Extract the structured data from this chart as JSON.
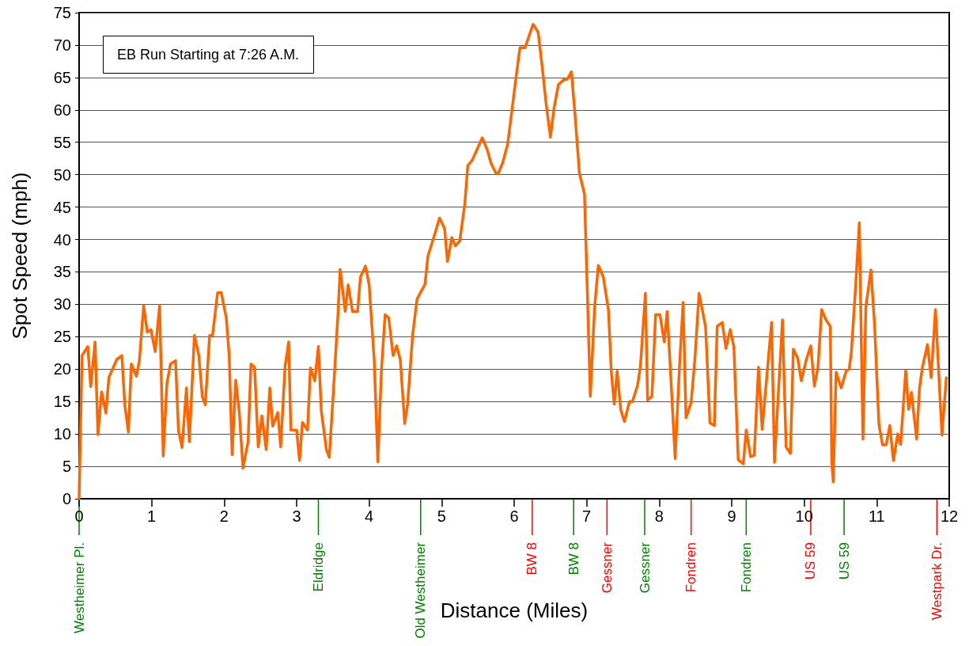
{
  "chart_data": {
    "type": "line",
    "xlabel": "Distance (Miles)",
    "ylabel": "Spot Speed (mph)",
    "annotations": [
      "EB Run Starting at 7:26 A.M."
    ],
    "xlim": [
      0,
      12
    ],
    "xticks": [
      0,
      1,
      2,
      3,
      4,
      5,
      6,
      7,
      8,
      9,
      10,
      11,
      12
    ],
    "ylim": [
      0,
      75
    ],
    "yticks": [
      0,
      5,
      10,
      15,
      20,
      25,
      30,
      35,
      40,
      45,
      50,
      55,
      60,
      65,
      70,
      75
    ],
    "grid": "y",
    "marker": "none",
    "line_style": "solid",
    "ref_lines": [
      {
        "axis": "x",
        "value": 0,
        "label": "Westheimer Pl.",
        "color": "#008000"
      },
      {
        "axis": "x",
        "value": 3.3,
        "label": "Eldridge",
        "color": "#008000"
      },
      {
        "axis": "x",
        "value": 4.71,
        "label": "Old Westheimer",
        "color": "#008000"
      },
      {
        "axis": "x",
        "value": 6.25,
        "label": "BW 8",
        "color": "#ff0000"
      },
      {
        "axis": "x",
        "value": 6.82,
        "label": "BW 8",
        "color": "#008000"
      },
      {
        "axis": "x",
        "value": 7.28,
        "label": "Gessner",
        "color": "#ff0000"
      },
      {
        "axis": "x",
        "value": 7.8,
        "label": "Gessner",
        "color": "#008000"
      },
      {
        "axis": "x",
        "value": 8.44,
        "label": "Fondren",
        "color": "#ff0000"
      },
      {
        "axis": "x",
        "value": 9.2,
        "label": "Fondren",
        "color": "#008000"
      },
      {
        "axis": "x",
        "value": 10.09,
        "label": "US 59",
        "color": "#ff0000"
      },
      {
        "axis": "x",
        "value": 10.55,
        "label": "US 59",
        "color": "#008000"
      },
      {
        "axis": "x",
        "value": 11.83,
        "label": "Westpark Dr.",
        "color": "#ff0000"
      }
    ],
    "series": [
      {
        "color": "#ff6600",
        "x": [
          0,
          0.04,
          0.12,
          0.16,
          0.22,
          0.26,
          0.31,
          0.37,
          0.41,
          0.52,
          0.59,
          0.63,
          0.68,
          0.72,
          0.79,
          0.83,
          0.89,
          0.94,
          0.99,
          1.05,
          1.11,
          1.16,
          1.21,
          1.26,
          1.33,
          1.37,
          1.42,
          1.48,
          1.52,
          1.59,
          1.65,
          1.7,
          1.74,
          1.8,
          1.84,
          1.91,
          1.96,
          2.03,
          2.07,
          2.11,
          2.16,
          2.21,
          2.26,
          2.33,
          2.37,
          2.42,
          2.47,
          2.52,
          2.58,
          2.63,
          2.67,
          2.74,
          2.78,
          2.84,
          2.89,
          2.92,
          3.0,
          3.04,
          3.08,
          3.15,
          3.19,
          3.25,
          3.3,
          3.34,
          3.41,
          3.45,
          3.51,
          3.57,
          3.6,
          3.67,
          3.71,
          3.77,
          3.84,
          3.88,
          3.95,
          4.0,
          4.07,
          4.12,
          4.17,
          4.22,
          4.27,
          4.33,
          4.38,
          4.43,
          4.49,
          4.53,
          4.6,
          4.66,
          4.77,
          4.81,
          4.91,
          4.97,
          5.04,
          5.08,
          5.14,
          5.19,
          5.25,
          5.32,
          5.36,
          5.42,
          5.56,
          5.63,
          5.68,
          5.75,
          5.78,
          5.84,
          5.91,
          5.97,
          6.03,
          6.08,
          6.15,
          6.26,
          6.33,
          6.39,
          6.44,
          6.5,
          6.55,
          6.61,
          6.69,
          6.73,
          6.79,
          6.84,
          6.9,
          6.97,
          7.0,
          7.05,
          7.11,
          7.16,
          7.23,
          7.3,
          7.34,
          7.38,
          7.42,
          7.47,
          7.52,
          7.59,
          7.63,
          7.7,
          7.74,
          7.81,
          7.84,
          7.9,
          7.95,
          8.01,
          8.07,
          8.11,
          8.16,
          8.22,
          8.28,
          8.33,
          8.37,
          8.44,
          8.49,
          8.55,
          8.64,
          8.7,
          8.76,
          8.8,
          8.87,
          8.92,
          8.98,
          9.03,
          9.09,
          9.16,
          9.2,
          9.26,
          9.31,
          9.37,
          9.42,
          9.55,
          9.59,
          9.7,
          9.75,
          9.81,
          9.85,
          9.91,
          9.96,
          10.03,
          10.09,
          10.14,
          10.19,
          10.24,
          10.3,
          10.36,
          10.38,
          10.4,
          10.44,
          10.51,
          10.58,
          10.62,
          10.65,
          10.71,
          10.76,
          10.81,
          10.85,
          10.92,
          10.97,
          11.03,
          11.08,
          11.13,
          11.18,
          11.23,
          11.29,
          11.33,
          11.4,
          11.44,
          11.48,
          11.55,
          11.59,
          11.63,
          11.7,
          11.75,
          11.81,
          11.9,
          11.96
        ],
        "values": [
          0,
          22.1,
          23.5,
          17.3,
          24.2,
          9.9,
          16.5,
          13.2,
          18.7,
          21.5,
          22.1,
          14.5,
          10.3,
          20.8,
          18.9,
          21.2,
          29.8,
          25.7,
          26.1,
          22.7,
          29.8,
          6.6,
          17.7,
          20.8,
          21.3,
          10.6,
          7.9,
          17.1,
          8.8,
          25.2,
          22.2,
          15.7,
          14.5,
          25.2,
          25.2,
          31.8,
          31.8,
          27.9,
          22,
          6.8,
          18.3,
          13.2,
          4.7,
          8.8,
          20.8,
          20.3,
          8,
          12.8,
          7.6,
          17.1,
          11.2,
          13.3,
          8,
          20.4,
          24.2,
          10.6,
          10.6,
          5.9,
          11.8,
          10.6,
          20.2,
          18.2,
          23.5,
          13.6,
          7.6,
          6.4,
          17.1,
          28.5,
          35.4,
          28.9,
          33,
          28.9,
          28.9,
          34.2,
          35.9,
          33,
          21.4,
          5.7,
          20,
          28.4,
          27.9,
          22.1,
          23.6,
          21.4,
          11.6,
          14.6,
          25.3,
          30.8,
          33.1,
          37.4,
          41,
          43.3,
          41.7,
          36.6,
          40.3,
          39,
          39.8,
          45.6,
          51.4,
          52.2,
          55.7,
          53.8,
          51.8,
          50.2,
          50.2,
          51.8,
          54.7,
          60,
          65.4,
          69.6,
          69.6,
          73.2,
          72,
          66.3,
          61,
          55.8,
          60.3,
          63.9,
          64.7,
          64.7,
          65.9,
          59.1,
          50.2,
          47,
          35.4,
          15.8,
          29.6,
          36,
          34.2,
          29.1,
          19.5,
          14.6,
          19.7,
          13.7,
          11.9,
          15,
          15,
          17.4,
          20.3,
          31.7,
          15.2,
          15.8,
          28.4,
          28.4,
          24.2,
          28.9,
          18.8,
          6.2,
          20.4,
          30.3,
          12.5,
          14.8,
          21.2,
          31.7,
          26.5,
          11.7,
          11.3,
          26.6,
          27.2,
          23.2,
          26.1,
          23.4,
          6,
          5.4,
          10.6,
          6.5,
          6.7,
          20.3,
          10.7,
          27.2,
          5.6,
          27.6,
          8,
          7,
          23.1,
          21.7,
          18.2,
          21.5,
          23.6,
          17.4,
          20.3,
          29.2,
          27.6,
          26.6,
          5.7,
          2.6,
          19.5,
          17.1,
          19.8,
          20,
          22.6,
          33,
          42.6,
          9.2,
          29.6,
          35.3,
          26.9,
          11.5,
          8.3,
          8.3,
          11.3,
          5.9,
          10,
          8.4,
          19.8,
          13.8,
          16.4,
          9.2,
          17.1,
          20.3,
          23.8,
          18.7,
          29.2,
          9.8,
          18.7
        ]
      }
    ]
  }
}
